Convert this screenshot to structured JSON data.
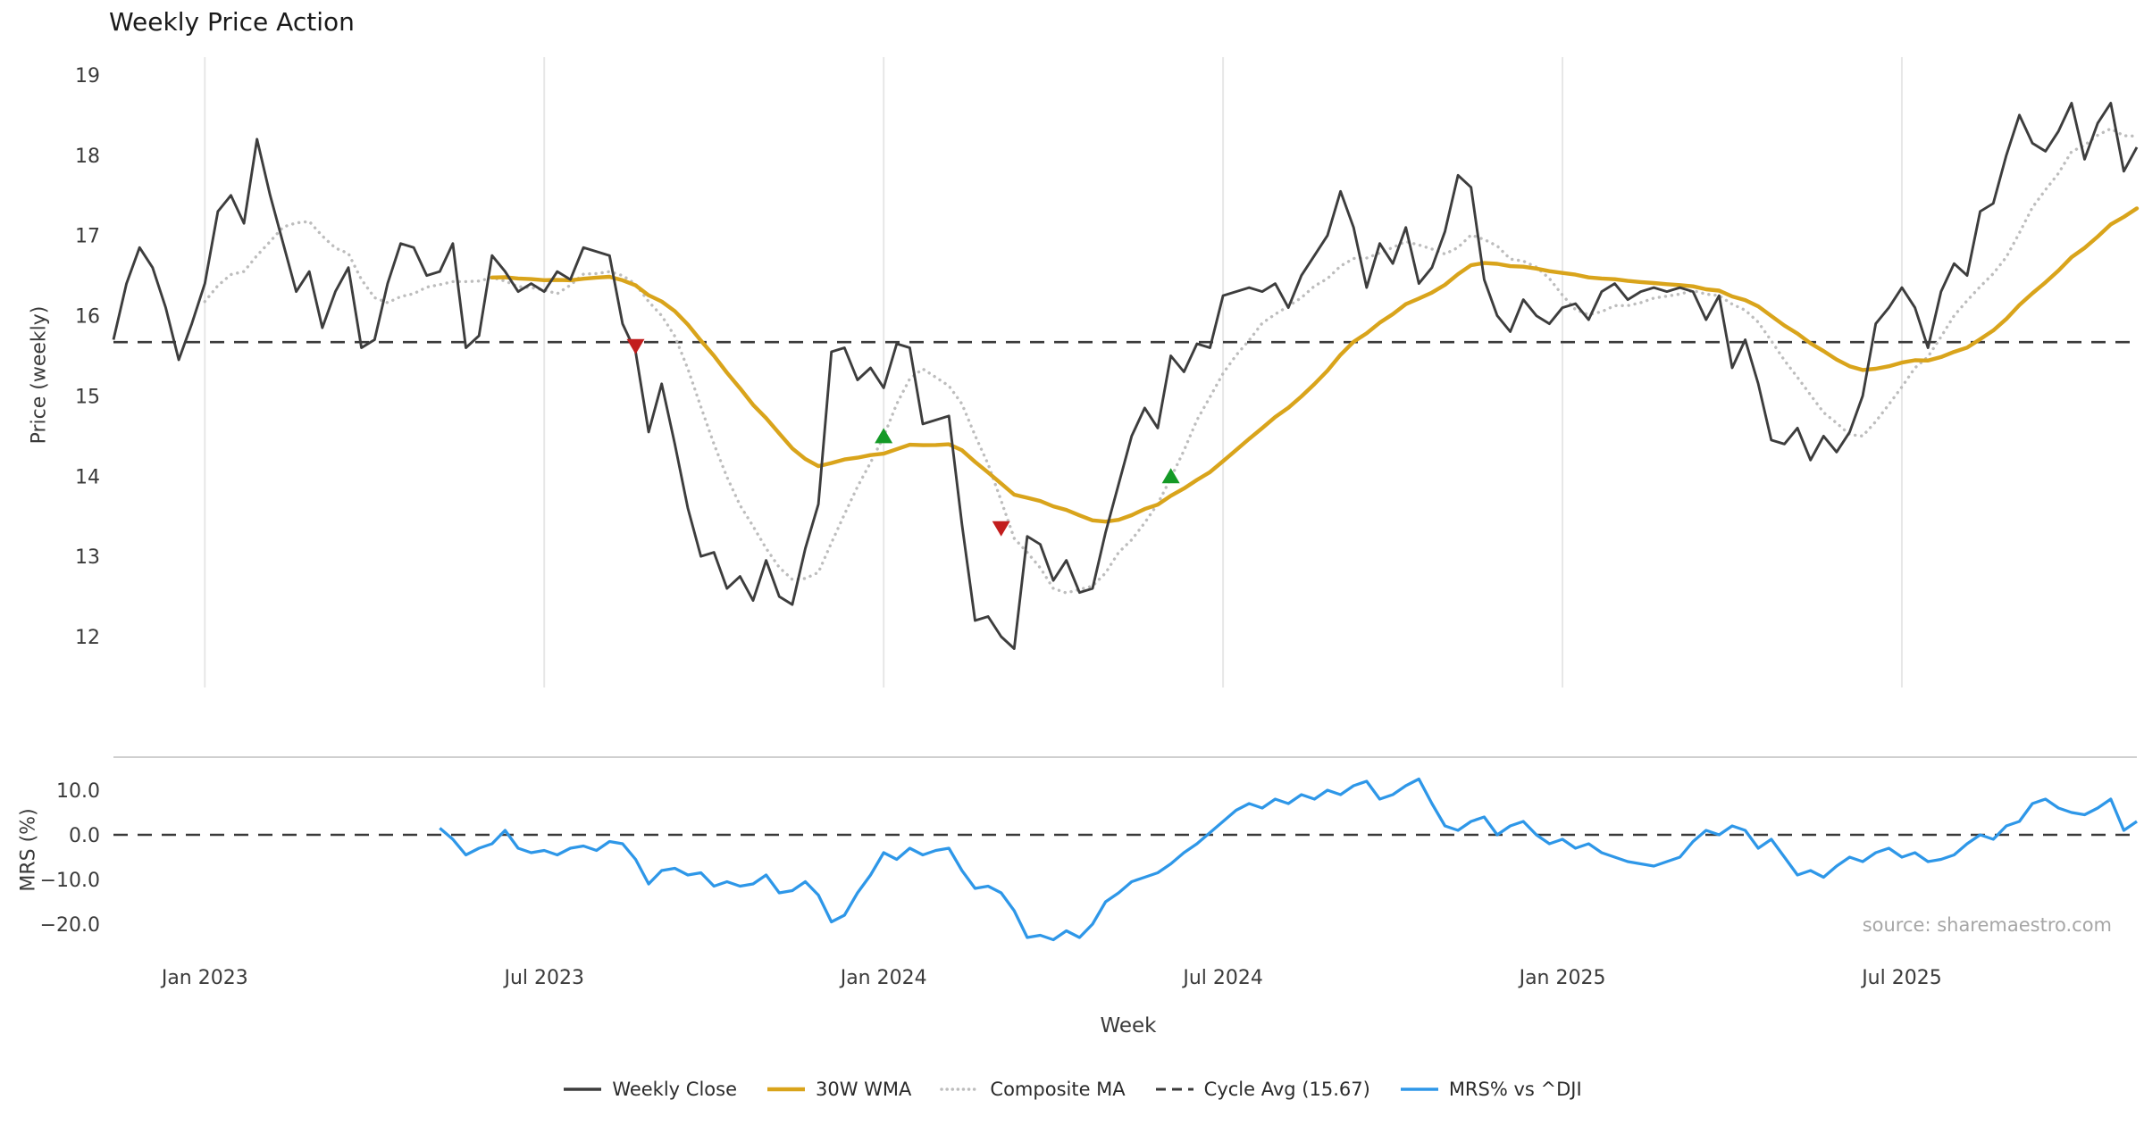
{
  "chart_data": {
    "type": "line",
    "title": "Weekly Price Action",
    "xlabel": "Week",
    "source": "source: sharemaestro.com",
    "n_weeks": 156,
    "x_tick_labels": [
      "Jan 2023",
      "Jul 2023",
      "Jan 2024",
      "Jul 2024",
      "Jan 2025",
      "Jul 2025"
    ],
    "x_tick_indices": [
      7,
      33,
      59,
      85,
      111,
      137
    ],
    "panels": [
      {
        "name": "price",
        "ylabel": "Price (weekly)",
        "ylim": [
          12,
          19
        ],
        "yticks": [
          12,
          13,
          14,
          15,
          16,
          17,
          18,
          19
        ],
        "cycle_avg": 15.67,
        "series": [
          {
            "name": "Weekly Close",
            "color": "#3d3d3d",
            "style": "solid",
            "values": [
              15.7,
              16.4,
              16.85,
              16.6,
              16.1,
              15.45,
              15.9,
              16.4,
              17.3,
              17.5,
              17.15,
              18.2,
              17.5,
              16.9,
              16.3,
              16.55,
              15.85,
              16.3,
              16.6,
              15.6,
              15.7,
              16.4,
              16.9,
              16.85,
              16.5,
              16.55,
              16.9,
              15.6,
              15.75,
              16.75,
              16.55,
              16.3,
              16.4,
              16.3,
              16.55,
              16.45,
              16.85,
              16.8,
              16.75,
              15.9,
              15.55,
              14.55,
              15.15,
              14.4,
              13.6,
              13.0,
              13.05,
              12.6,
              12.75,
              12.45,
              12.95,
              12.5,
              12.4,
              13.1,
              13.65,
              15.55,
              15.6,
              15.2,
              15.35,
              15.1,
              15.65,
              15.6,
              14.65,
              14.7,
              14.75,
              13.4,
              12.2,
              12.25,
              12.0,
              11.85,
              13.25,
              13.15,
              12.7,
              12.95,
              12.55,
              12.6,
              13.3,
              13.9,
              14.5,
              14.85,
              14.6,
              15.5,
              15.3,
              15.65,
              15.6,
              16.25,
              16.3,
              16.35,
              16.3,
              16.4,
              16.1,
              16.5,
              16.75,
              17.0,
              17.55,
              17.1,
              16.35,
              16.9,
              16.65,
              17.1,
              16.4,
              16.6,
              17.05,
              17.75,
              17.6,
              16.45,
              16.0,
              15.8,
              16.2,
              16.0,
              15.9,
              16.1,
              16.15,
              15.95,
              16.3,
              16.4,
              16.2,
              16.3,
              16.35,
              16.3,
              16.35,
              16.3,
              15.95,
              16.25,
              15.35,
              15.7,
              15.15,
              14.45,
              14.4,
              14.6,
              14.2,
              14.5,
              14.3,
              14.55,
              15.0,
              15.9,
              16.1,
              16.35,
              16.1,
              15.6,
              16.3,
              16.65,
              16.5,
              17.3,
              17.4,
              18.0,
              18.5,
              18.15,
              18.05,
              18.3,
              18.65,
              17.95,
              18.4,
              18.65,
              17.8,
              18.1
            ]
          },
          {
            "name": "30W WMA",
            "color": "#d9a41b",
            "style": "solid",
            "derived": "wma30"
          },
          {
            "name": "Composite MA",
            "color": "#bdbdbd",
            "style": "dotted",
            "derived": "sma8"
          }
        ],
        "markers": {
          "buy": {
            "color": "#149926",
            "shape": "triangle-up",
            "points": [
              {
                "i": 59,
                "y": 14.5
              },
              {
                "i": 81,
                "y": 14.0
              }
            ]
          },
          "sell": {
            "color": "#c21d1d",
            "shape": "triangle-down",
            "points": [
              {
                "i": 40,
                "y": 15.62
              },
              {
                "i": 68,
                "y": 13.35
              }
            ]
          }
        }
      },
      {
        "name": "mrs",
        "ylabel": "MRS (%)",
        "ylim": [
          -25,
          14
        ],
        "yticks": [
          10,
          0,
          -10,
          -20
        ],
        "ytick_labels": [
          "10.0",
          "0.0",
          "−10.0",
          "−20.0"
        ],
        "zero_line": 0,
        "series": [
          {
            "name": "MRS% vs ^DJI",
            "color": "#2e97e8",
            "style": "solid",
            "start": 25,
            "values": [
              1.5,
              -1.0,
              -4.5,
              -3.0,
              -2.0,
              1.0,
              -3.0,
              -4.0,
              -3.5,
              -4.5,
              -3.0,
              -2.5,
              -3.5,
              -1.5,
              -2.0,
              -5.5,
              -11.0,
              -8.0,
              -7.5,
              -9.0,
              -8.5,
              -11.5,
              -10.5,
              -11.5,
              -11.0,
              -9.0,
              -13.0,
              -12.5,
              -10.5,
              -13.5,
              -19.5,
              -18.0,
              -13.0,
              -9.0,
              -4.0,
              -5.5,
              -3.0,
              -4.5,
              -3.5,
              -3.0,
              -8.0,
              -12.0,
              -11.5,
              -13.0,
              -17.0,
              -23.0,
              -22.5,
              -23.5,
              -21.5,
              -23.0,
              -20.0,
              -15.0,
              -13.0,
              -10.5,
              -9.5,
              -8.5,
              -6.5,
              -4.0,
              -2.0,
              0.5,
              3.0,
              5.5,
              7.0,
              6.0,
              8.0,
              7.0,
              9.0,
              8.0,
              10.0,
              9.0,
              11.0,
              12.0,
              8.0,
              9.0,
              11.0,
              12.5,
              7.0,
              2.0,
              1.0,
              3.0,
              4.0,
              0.0,
              2.0,
              3.0,
              0.0,
              -2.0,
              -1.0,
              -3.0,
              -2.0,
              -4.0,
              -5.0,
              -6.0,
              -6.5,
              -7.0,
              -6.0,
              -5.0,
              -1.5,
              1.0,
              0.0,
              2.0,
              1.0,
              -3.0,
              -1.0,
              -5.0,
              -9.0,
              -8.0,
              -9.5,
              -7.0,
              -5.0,
              -6.0,
              -4.0,
              -3.0,
              -5.0,
              -4.0,
              -6.0,
              -5.5,
              -4.5,
              -2.0,
              0.0,
              -1.0,
              2.0,
              3.0,
              7.0,
              8.0,
              6.0,
              5.0,
              4.5,
              6.0,
              8.0,
              1.0,
              3.0
            ]
          }
        ]
      }
    ],
    "legend": [
      {
        "label": "Weekly Close",
        "color": "#3d3d3d",
        "style": "solid",
        "width": 3.5
      },
      {
        "label": "30W WMA",
        "color": "#d9a41b",
        "style": "solid",
        "width": 4.5
      },
      {
        "label": "Composite MA",
        "color": "#bdbdbd",
        "style": "dotted",
        "width": 3.5
      },
      {
        "label": "Cycle Avg (15.67)",
        "color": "#3a3a3a",
        "style": "dashed",
        "width": 3.0
      },
      {
        "label": "MRS% vs ^DJI",
        "color": "#2e97e8",
        "style": "solid",
        "width": 3.5
      }
    ]
  }
}
